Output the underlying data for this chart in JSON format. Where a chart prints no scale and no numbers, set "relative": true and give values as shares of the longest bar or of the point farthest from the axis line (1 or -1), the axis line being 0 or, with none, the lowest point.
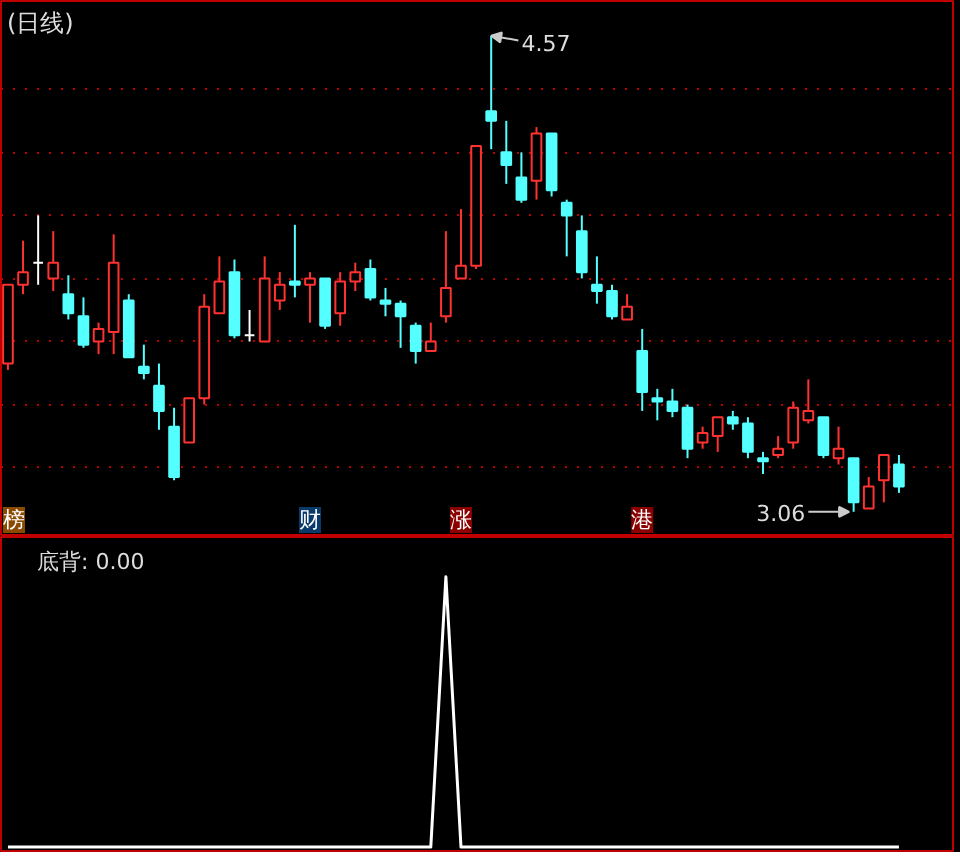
{
  "chart_data": [
    {
      "type": "candlestick",
      "title": "(日线)",
      "categories": [
        null,
        null,
        null,
        null,
        null,
        null,
        null,
        null,
        null,
        null,
        null,
        null,
        null,
        null,
        null,
        null,
        null,
        null,
        null,
        null,
        null,
        null,
        null,
        null,
        null,
        null,
        null,
        null,
        null,
        null,
        null,
        null,
        null,
        null,
        null,
        null,
        null,
        null,
        null,
        null,
        null,
        null,
        null,
        null,
        null,
        null,
        null,
        null,
        null,
        null,
        null,
        null,
        null,
        null,
        null,
        null,
        null,
        null,
        null,
        null
      ],
      "ohlc": [
        [
          3.53,
          3.78,
          3.51,
          3.78
        ],
        [
          3.78,
          3.92,
          3.75,
          3.82
        ],
        [
          3.85,
          4.0,
          3.78,
          3.85
        ],
        [
          3.8,
          3.95,
          3.76,
          3.85
        ],
        [
          3.75,
          3.81,
          3.67,
          3.69
        ],
        [
          3.68,
          3.74,
          3.58,
          3.59
        ],
        [
          3.6,
          3.66,
          3.56,
          3.64
        ],
        [
          3.63,
          3.94,
          3.56,
          3.85
        ],
        [
          3.73,
          3.75,
          3.55,
          3.55
        ],
        [
          3.52,
          3.59,
          3.48,
          3.5
        ],
        [
          3.46,
          3.53,
          3.32,
          3.38
        ],
        [
          3.33,
          3.39,
          3.16,
          3.17
        ],
        [
          3.28,
          3.42,
          3.28,
          3.42
        ],
        [
          3.42,
          3.75,
          3.4,
          3.71
        ],
        [
          3.69,
          3.87,
          3.69,
          3.79
        ],
        [
          3.82,
          3.86,
          3.61,
          3.62
        ],
        [
          3.62,
          3.7,
          3.6,
          3.62
        ],
        [
          3.6,
          3.87,
          3.6,
          3.8
        ],
        [
          3.73,
          3.82,
          3.7,
          3.78
        ],
        [
          3.79,
          3.97,
          3.74,
          3.78
        ],
        [
          3.78,
          3.82,
          3.66,
          3.8
        ],
        [
          3.8,
          3.8,
          3.64,
          3.65
        ],
        [
          3.69,
          3.82,
          3.65,
          3.79
        ],
        [
          3.79,
          3.85,
          3.76,
          3.82
        ],
        [
          3.83,
          3.86,
          3.73,
          3.74
        ],
        [
          3.73,
          3.77,
          3.68,
          3.72
        ],
        [
          3.72,
          3.73,
          3.58,
          3.68
        ],
        [
          3.65,
          3.66,
          3.53,
          3.57
        ],
        [
          3.57,
          3.66,
          3.57,
          3.6
        ],
        [
          3.68,
          3.95,
          3.66,
          3.77
        ],
        [
          3.8,
          4.02,
          3.8,
          3.84
        ],
        [
          3.84,
          4.22,
          3.83,
          4.22
        ],
        [
          4.33,
          4.57,
          4.21,
          4.3
        ],
        [
          4.2,
          4.3,
          4.1,
          4.16
        ],
        [
          4.12,
          4.2,
          4.04,
          4.05
        ],
        [
          4.11,
          4.28,
          4.05,
          4.26
        ],
        [
          4.26,
          4.26,
          4.06,
          4.08
        ],
        [
          4.04,
          4.05,
          3.87,
          4.0
        ],
        [
          3.95,
          4.0,
          3.8,
          3.82
        ],
        [
          3.78,
          3.87,
          3.72,
          3.76
        ],
        [
          3.76,
          3.78,
          3.67,
          3.68
        ],
        [
          3.67,
          3.75,
          3.67,
          3.71
        ],
        [
          3.57,
          3.64,
          3.38,
          3.44
        ],
        [
          3.42,
          3.45,
          3.35,
          3.41
        ],
        [
          3.41,
          3.45,
          3.36,
          3.38
        ],
        [
          3.39,
          3.4,
          3.23,
          3.26
        ],
        [
          3.28,
          3.33,
          3.26,
          3.31
        ],
        [
          3.3,
          3.36,
          3.25,
          3.36
        ],
        [
          3.36,
          3.38,
          3.32,
          3.34
        ],
        [
          3.34,
          3.36,
          3.23,
          3.25
        ],
        [
          3.23,
          3.25,
          3.18,
          3.22
        ],
        [
          3.24,
          3.3,
          3.23,
          3.26
        ],
        [
          3.28,
          3.41,
          3.26,
          3.39
        ],
        [
          3.35,
          3.48,
          3.34,
          3.38
        ],
        [
          3.36,
          3.36,
          3.23,
          3.24
        ],
        [
          3.23,
          3.33,
          3.21,
          3.26
        ],
        [
          3.23,
          3.23,
          3.06,
          3.09
        ],
        [
          3.07,
          3.17,
          3.07,
          3.14
        ],
        [
          3.16,
          3.24,
          3.09,
          3.24
        ],
        [
          3.21,
          3.24,
          3.12,
          3.14
        ]
      ],
      "colors": [
        "#ff3232",
        "#ff3232",
        "#ffffff",
        "#ff3232",
        "#54ffff",
        "#54ffff",
        "#ff3232",
        "#ff3232",
        "#54ffff",
        "#54ffff",
        "#54ffff",
        "#54ffff",
        "#ff3232",
        "#ff3232",
        "#ff3232",
        "#54ffff",
        "#ffffff",
        "#ff3232",
        "#ff3232",
        "#54ffff",
        "#ff3232",
        "#54ffff",
        "#ff3232",
        "#ff3232",
        "#54ffff",
        "#54ffff",
        "#54ffff",
        "#54ffff",
        "#ff3232",
        "#ff3232",
        "#ff3232",
        "#ff3232",
        "#54ffff",
        "#54ffff",
        "#54ffff",
        "#ff3232",
        "#54ffff",
        "#54ffff",
        "#54ffff",
        "#54ffff",
        "#54ffff",
        "#ff3232",
        "#54ffff",
        "#54ffff",
        "#54ffff",
        "#54ffff",
        "#ff3232",
        "#ff3232",
        "#54ffff",
        "#54ffff",
        "#54ffff",
        "#ff3232",
        "#ff3232",
        "#ff3232",
        "#54ffff",
        "#ff3232",
        "#54ffff",
        "#ff3232",
        "#ff3232",
        "#54ffff"
      ],
      "ylim": [
        2.98,
        4.68
      ],
      "yticks": [
        {
          "value": 3.2,
          "label": null
        },
        {
          "value": 3.4,
          "label": null
        },
        {
          "value": 3.6,
          "label": null
        },
        {
          "value": 3.8,
          "label": null
        },
        {
          "value": 4.0,
          "label": null
        },
        {
          "value": 4.2,
          "label": null
        },
        {
          "value": 4.4,
          "label": null
        }
      ],
      "tick_labels": false,
      "grid": "y",
      "annotations": [
        "4.57",
        "3.06",
        "榜",
        "财",
        "涨",
        "港"
      ]
    },
    {
      "type": "line",
      "title": "底背: 0.00",
      "relative": true,
      "categories": [
        null,
        null,
        null,
        null,
        null,
        null,
        null,
        null,
        null,
        null,
        null,
        null,
        null,
        null,
        null,
        null,
        null,
        null,
        null,
        null,
        null,
        null,
        null,
        null,
        null,
        null,
        null,
        null,
        null,
        null,
        null,
        null,
        null,
        null,
        null,
        null,
        null,
        null,
        null,
        null,
        null,
        null,
        null,
        null,
        null,
        null,
        null,
        null,
        null,
        null,
        null,
        null,
        null,
        null,
        null,
        null,
        null,
        null,
        null,
        null
      ],
      "series": [
        {
          "color": "#ffffff",
          "values": [
            0,
            0,
            0,
            0,
            0,
            0,
            0,
            0,
            0,
            0,
            0,
            0,
            0,
            0,
            0,
            0,
            0,
            0,
            0,
            0,
            0,
            0,
            0,
            0,
            0,
            0,
            0,
            0,
            0,
            1,
            0,
            0,
            0,
            0,
            0,
            0,
            0,
            0,
            0,
            0,
            0,
            0,
            0,
            0,
            0,
            0,
            0,
            0,
            0,
            0,
            0,
            0,
            0,
            0,
            0,
            0,
            0,
            0,
            0,
            0
          ]
        }
      ],
      "tick_labels": false
    }
  ]
}
